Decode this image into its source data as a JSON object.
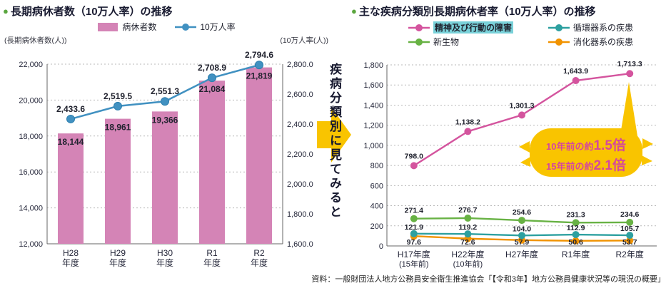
{
  "page": {
    "source_note": "資料：一般財団法人地方公務員安全衛生推進協会「【令和3年】地方公務員健康状況等の現況の概要」"
  },
  "banner": {
    "vertical_text": "疾病分類別に見てみると",
    "arrow_color": "#f9c400"
  },
  "left_chart": {
    "bullet": "●"
  },
  "right_chart": {
    "bullet": "●"
  },
  "chart_data": [
    {
      "id": "long-term-sick-leave-trend",
      "type": "bar",
      "title": "長期病休者数（10万人率）の推移",
      "categories": [
        [
          "H28",
          "年度"
        ],
        [
          "H29",
          "年度"
        ],
        [
          "H30",
          "年度"
        ],
        [
          "R1",
          "年度"
        ],
        [
          "R2",
          "年度"
        ]
      ],
      "series": [
        {
          "name": "病休者数",
          "type": "bar",
          "axis": "left",
          "color": "#d484b6",
          "values": [
            18144,
            18961,
            19366,
            21084,
            21819
          ],
          "labels": [
            "18,144",
            "18,961",
            "19,366",
            "21,084",
            "21,819"
          ]
        },
        {
          "name": "10万人率",
          "type": "line",
          "axis": "right",
          "color": "#4191c1",
          "values": [
            2433.6,
            2519.5,
            2551.3,
            2708.9,
            2794.6
          ],
          "labels": [
            "2,433.6",
            "2,519.5",
            "2,551.3",
            "2,708.9",
            "2,794.6"
          ]
        }
      ],
      "left_axis": {
        "caption": "(長期病休者数(人))",
        "min": 12000,
        "max": 22000,
        "step": 2000,
        "decimals": 0
      },
      "right_axis": {
        "caption": "(10万人率(人))",
        "min": 1600,
        "max": 2800,
        "step": 200,
        "decimals": 1
      },
      "grid": true,
      "legend_position": "top"
    },
    {
      "id": "rate-by-disease-category",
      "type": "line",
      "title": "主な疾病分類別長期病休者率（10万人率）の推移",
      "categories": [
        [
          "H17年度",
          "(15年前)"
        ],
        [
          "H22年度",
          "(10年前)"
        ],
        [
          "H27年度",
          ""
        ],
        [
          "R1年度",
          ""
        ],
        [
          "R2年度",
          ""
        ]
      ],
      "series": [
        {
          "name": "精神及び行動の障害",
          "color": "#d4549e",
          "highlight": "#79d1d9",
          "values": [
            798.0,
            1138.2,
            1301.3,
            1643.9,
            1713.3
          ],
          "labels": [
            "798.0",
            "1,138.2",
            "1,301.3",
            "1,643.9",
            "1,713.3"
          ],
          "label_dy": -10
        },
        {
          "name": "循環器系の疾患",
          "color": "#2da0a0",
          "values": [
            121.9,
            119.2,
            104.0,
            112.9,
            105.7
          ],
          "labels": [
            "121.9",
            "119.2",
            "104.0",
            "112.9",
            "105.7"
          ],
          "label_dy": -6
        },
        {
          "name": "新生物",
          "color": "#68b244",
          "values": [
            271.4,
            276.7,
            254.6,
            231.3,
            234.6
          ],
          "labels": [
            "271.4",
            "276.7",
            "254.6",
            "231.3",
            "234.6"
          ],
          "label_dy": -8
        },
        {
          "name": "消化器系の疾患",
          "color": "#f19300",
          "values": [
            97.6,
            72.6,
            57.9,
            50.6,
            53.7
          ],
          "labels": [
            "97.6",
            "72.6",
            "57.9",
            "50.6",
            "53.7"
          ],
          "label_dy": 14
        }
      ],
      "y_axis": {
        "min": 0,
        "max": 1800,
        "step": 200,
        "decimals": 0
      },
      "grid": true,
      "legend_position": "top",
      "callout": {
        "lines": [
          {
            "prefix": "10年前の約",
            "value": "1.5",
            "suffix": "倍"
          },
          {
            "prefix": "15年前の約",
            "value": "2.1",
            "suffix": "倍"
          }
        ],
        "bg": "#f9c400",
        "text_color": "#d5489c"
      }
    }
  ]
}
